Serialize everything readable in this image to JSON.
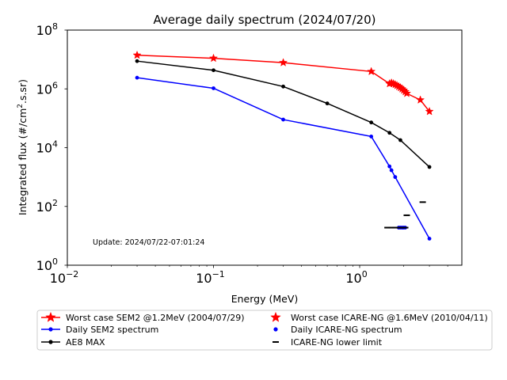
{
  "chart_data": {
    "type": "line",
    "title": "Average daily spectrum (2024/07/20)",
    "xlabel": "Energy (MeV)",
    "ylabel_main": "Integrated flux (#/cm",
    "ylabel_sup": "2",
    "ylabel_tail": ".s.sr)",
    "xscale": "log",
    "yscale": "log",
    "xlim": [
      0.01,
      5
    ],
    "ylim": [
      1,
      100000000
    ],
    "xticks": [
      {
        "value": 0.01,
        "base": "10",
        "exp": "−2"
      },
      {
        "value": 0.1,
        "base": "10",
        "exp": "−1"
      },
      {
        "value": 1,
        "base": "10",
        "exp": "0"
      }
    ],
    "yticks": [
      {
        "value": 1,
        "base": "10",
        "exp": "0"
      },
      {
        "value": 100,
        "base": "10",
        "exp": "2"
      },
      {
        "value": 10000,
        "base": "10",
        "exp": "4"
      },
      {
        "value": 1000000,
        "base": "10",
        "exp": "6"
      },
      {
        "value": 100000000,
        "base": "10",
        "exp": "8"
      }
    ],
    "annotation": "Update: 2024/07/22-07:01:24",
    "legend_position": "below",
    "series": [
      {
        "name": "Worst case SEM2 @1.2MeV (2004/07/29)",
        "color": "#ff0000",
        "marker": "star",
        "line": true,
        "x": [
          0.03,
          0.1,
          0.3,
          1.2,
          1.6,
          1.65,
          1.7,
          1.75,
          1.8,
          1.85,
          1.9,
          1.95,
          2.0,
          2.05,
          2.1,
          2.6,
          3.0
        ],
        "y": [
          14000000,
          11000000,
          7800000,
          3900000,
          1500000,
          1600000,
          1500000,
          1400000,
          1300000,
          1200000,
          1100000,
          1000000,
          900000,
          800000,
          700000,
          420000,
          170000
        ]
      },
      {
        "name": "Daily SEM2 spectrum",
        "color": "#0000ff",
        "marker": "dot",
        "line": true,
        "x": [
          0.03,
          0.1,
          0.3,
          1.2,
          1.6,
          1.65,
          1.75,
          3.0
        ],
        "y": [
          2400000,
          1050000,
          90000,
          24000,
          2300,
          1700,
          1000,
          8
        ]
      },
      {
        "name": "AE8 MAX",
        "color": "#000000",
        "marker": "dot",
        "line": true,
        "x": [
          0.03,
          0.1,
          0.3,
          0.6,
          1.2,
          1.6,
          1.9,
          3.0
        ],
        "y": [
          8800000,
          4300000,
          1200000,
          320000,
          72000,
          32000,
          18000,
          2200
        ]
      },
      {
        "name": "Worst case ICARE-NG @1.6MeV (2010/04/11)",
        "color": "#ff0000",
        "marker": "star",
        "line": false,
        "x": [],
        "y": []
      },
      {
        "name": "Daily ICARE-NG spectrum",
        "color": "#0000ff",
        "marker": "dot",
        "line": false,
        "x": [
          1.85,
          1.9,
          1.95,
          2.0,
          2.05
        ],
        "y": [
          19,
          19,
          19,
          19,
          19
        ]
      },
      {
        "name": "ICARE-NG lower limit",
        "color": "#000000",
        "marker": "dash",
        "line": false,
        "x": [
          1.55,
          1.65,
          1.75,
          1.85,
          1.9,
          1.95,
          2.0,
          2.05,
          2.1,
          2.7
        ],
        "y": [
          19,
          19,
          19,
          19,
          19,
          19,
          19,
          19,
          50,
          140
        ]
      }
    ]
  }
}
